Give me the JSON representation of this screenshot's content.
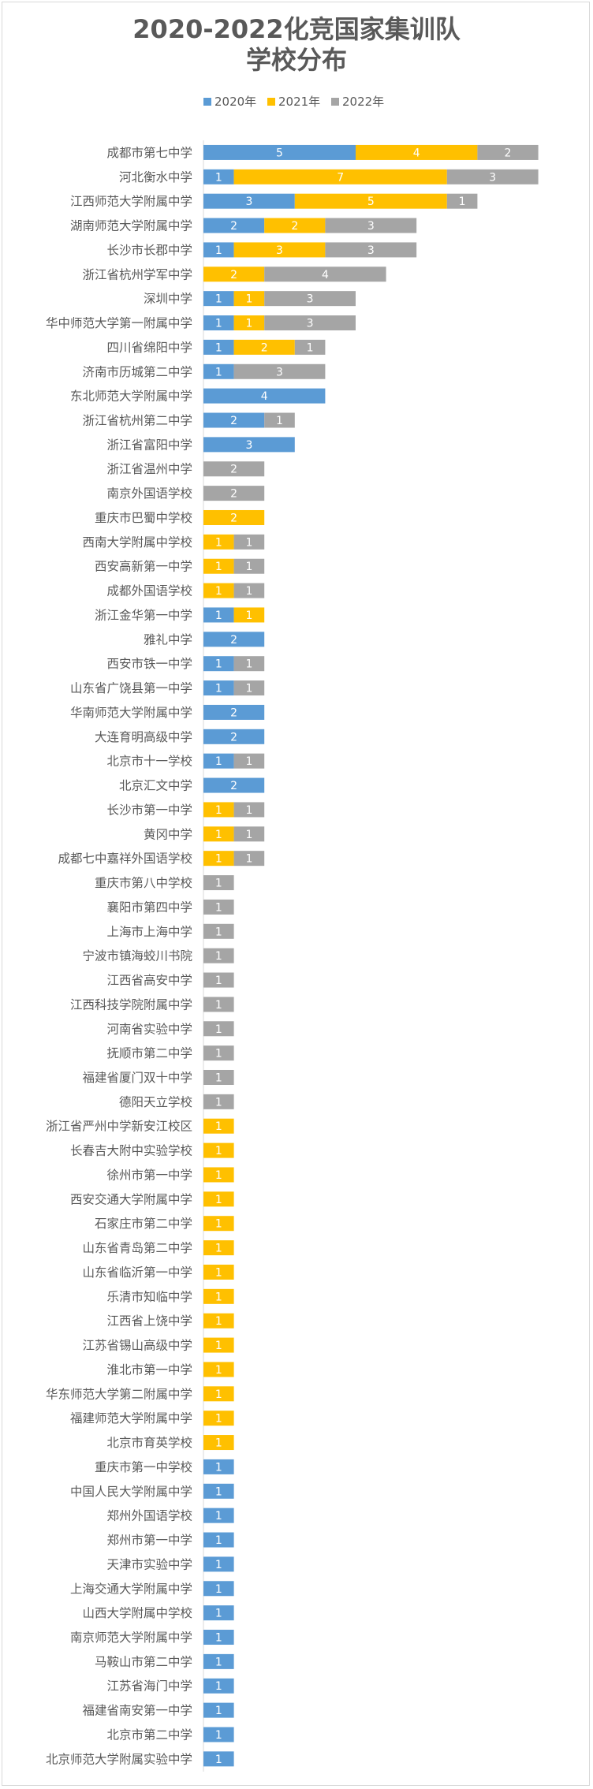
{
  "chart_data": {
    "type": "bar",
    "orientation": "horizontal",
    "stacked": true,
    "title_lines": [
      "2020-2022化竞国家集训队",
      "学校分布"
    ],
    "legend_position": "top",
    "colors": {
      "2020年": "#5b9bd5",
      "2021年": "#ffc000",
      "2022年": "#a5a5a5"
    },
    "series_names": [
      "2020年",
      "2021年",
      "2022年"
    ],
    "categories": [
      "成都市第七中学",
      "河北衡水中学",
      "江西师范大学附属中学",
      "湖南师范大学附属中学",
      "长沙市长郡中学",
      "浙江省杭州学军中学",
      "深圳中学",
      "华中师范大学第一附属中学",
      "四川省绵阳中学",
      "济南市历城第二中学",
      "东北师范大学附属中学",
      "浙江省杭州第二中学",
      "浙江省富阳中学",
      "浙江省温州中学",
      "南京外国语学校",
      "重庆市巴蜀中学校",
      "西南大学附属中学校",
      "西安高新第一中学",
      "成都外国语学校",
      "浙江金华第一中学",
      "雅礼中学",
      "西安市铁一中学",
      "山东省广饶县第一中学",
      "华南师范大学附属中学",
      "大连育明高级中学",
      "北京市十一学校",
      "北京汇文中学",
      "长沙市第一中学",
      "黄冈中学",
      "成都七中嘉祥外国语学校",
      "重庆市第八中学校",
      "襄阳市第四中学",
      "上海市上海中学",
      "宁波市镇海蛟川书院",
      "江西省高安中学",
      "江西科技学院附属中学",
      "河南省实验中学",
      "抚顺市第二中学",
      "福建省厦门双十中学",
      "德阳天立学校",
      "浙江省严州中学新安江校区",
      "长春吉大附中实验学校",
      "徐州市第一中学",
      "西安交通大学附属中学",
      "石家庄市第二中学",
      "山东省青岛第二中学",
      "山东省临沂第一中学",
      "乐清市知临中学",
      "江西省上饶中学",
      "江苏省锡山高级中学",
      "淮北市第一中学",
      "华东师范大学第二附属中学",
      "福建师范大学附属中学",
      "北京市育英学校",
      "重庆市第一中学校",
      "中国人民大学附属中学",
      "郑州外国语学校",
      "郑州市第一中学",
      "天津市实验中学",
      "上海交通大学附属中学",
      "山西大学附属中学校",
      "南京师范大学附属中学",
      "马鞍山市第二中学",
      "江苏省海门中学",
      "福建省南安第一中学",
      "北京市第二中学",
      "北京师范大学附属实验中学"
    ],
    "series": [
      {
        "name": "2020年",
        "values": [
          5,
          1,
          3,
          2,
          1,
          0,
          1,
          1,
          1,
          1,
          4,
          2,
          3,
          0,
          0,
          0,
          0,
          0,
          0,
          1,
          2,
          1,
          1,
          2,
          2,
          1,
          2,
          0,
          0,
          0,
          0,
          0,
          0,
          0,
          0,
          0,
          0,
          0,
          0,
          0,
          0,
          0,
          0,
          0,
          0,
          0,
          0,
          0,
          0,
          0,
          0,
          0,
          0,
          0,
          1,
          1,
          1,
          1,
          1,
          1,
          1,
          1,
          1,
          1,
          1,
          1,
          1
        ]
      },
      {
        "name": "2021年",
        "values": [
          4,
          7,
          5,
          2,
          3,
          2,
          1,
          1,
          2,
          0,
          0,
          0,
          0,
          0,
          0,
          2,
          1,
          1,
          1,
          1,
          0,
          0,
          0,
          0,
          0,
          0,
          0,
          1,
          1,
          1,
          0,
          0,
          0,
          0,
          0,
          0,
          0,
          0,
          0,
          0,
          1,
          1,
          1,
          1,
          1,
          1,
          1,
          1,
          1,
          1,
          1,
          1,
          1,
          1,
          0,
          0,
          0,
          0,
          0,
          0,
          0,
          0,
          0,
          0,
          0,
          0,
          0
        ]
      },
      {
        "name": "2022年",
        "values": [
          2,
          3,
          1,
          3,
          3,
          4,
          3,
          3,
          1,
          3,
          0,
          1,
          0,
          2,
          2,
          0,
          1,
          1,
          1,
          0,
          0,
          1,
          1,
          0,
          0,
          1,
          0,
          1,
          1,
          1,
          1,
          1,
          1,
          1,
          1,
          1,
          1,
          1,
          1,
          1,
          0,
          0,
          0,
          0,
          0,
          0,
          0,
          0,
          0,
          0,
          0,
          0,
          0,
          0,
          0,
          0,
          0,
          0,
          0,
          0,
          0,
          0,
          0,
          0,
          0,
          0,
          0
        ]
      }
    ],
    "xlim": [
      0,
      11
    ],
    "grid": false
  }
}
